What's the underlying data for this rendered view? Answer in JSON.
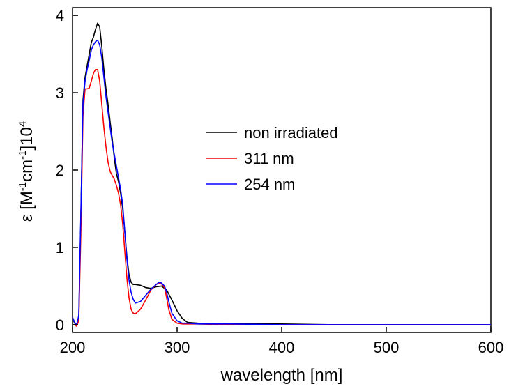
{
  "chart_data": {
    "type": "line",
    "title": "",
    "xlabel": "wavelength [nm]",
    "ylabel": {
      "prefix": "ε [M",
      "sup1": "-1",
      "mid": "cm",
      "sup2": "-1",
      "mid2": "]10",
      "sup3": "4"
    },
    "xlim": [
      200,
      600
    ],
    "ylim": [
      -0.1,
      4.1
    ],
    "xticks": [
      200,
      300,
      400,
      500,
      600
    ],
    "yticks": [
      0,
      1,
      2,
      3,
      4
    ],
    "grid": false,
    "legend_position": "center-right",
    "series": [
      {
        "name": "non irradiated",
        "color": "#000000",
        "x": [
          200,
          202,
          204,
          206,
          208,
          210,
          212,
          214,
          216,
          218,
          220,
          222,
          224,
          226,
          228,
          230,
          232,
          234,
          236,
          238,
          240,
          242,
          244,
          246,
          248,
          250,
          252,
          254,
          256,
          258,
          260,
          265,
          270,
          275,
          280,
          285,
          290,
          295,
          300,
          305,
          310,
          320,
          350,
          400,
          450,
          500,
          550,
          600
        ],
        "y": [
          0.08,
          0.02,
          0.0,
          0.1,
          1.4,
          2.9,
          3.2,
          3.35,
          3.5,
          3.65,
          3.72,
          3.82,
          3.9,
          3.85,
          3.6,
          3.3,
          3.05,
          2.85,
          2.62,
          2.4,
          2.15,
          1.95,
          1.85,
          1.7,
          1.5,
          1.2,
          0.88,
          0.65,
          0.55,
          0.52,
          0.52,
          0.51,
          0.48,
          0.47,
          0.49,
          0.5,
          0.45,
          0.32,
          0.18,
          0.08,
          0.03,
          0.02,
          0.01,
          0.01,
          0.0,
          0.0,
          0.0,
          0.0
        ]
      },
      {
        "name": "311 nm",
        "color": "#ff0000",
        "x": [
          200,
          202,
          204,
          206,
          208,
          210,
          212,
          214,
          216,
          218,
          220,
          222,
          224,
          226,
          228,
          230,
          232,
          234,
          236,
          238,
          240,
          242,
          244,
          246,
          248,
          250,
          252,
          254,
          256,
          258,
          260,
          265,
          270,
          275,
          280,
          283,
          285,
          288,
          290,
          292,
          295,
          300,
          305,
          310,
          320,
          350,
          400,
          450,
          500,
          550,
          600
        ],
        "y": [
          0.0,
          0.0,
          -0.02,
          0.05,
          1.2,
          2.7,
          3.05,
          3.05,
          3.06,
          3.15,
          3.25,
          3.3,
          3.3,
          3.15,
          2.85,
          2.55,
          2.3,
          2.1,
          1.98,
          1.93,
          1.88,
          1.8,
          1.7,
          1.55,
          1.3,
          0.95,
          0.6,
          0.35,
          0.2,
          0.15,
          0.14,
          0.2,
          0.32,
          0.45,
          0.52,
          0.54,
          0.53,
          0.48,
          0.35,
          0.2,
          0.07,
          0.02,
          0.01,
          0.01,
          0.01,
          0.0,
          0.0,
          0.0,
          0.0,
          0.0,
          0.0
        ]
      },
      {
        "name": "254 nm",
        "color": "#0000ff",
        "x": [
          200,
          202,
          204,
          206,
          208,
          210,
          212,
          214,
          216,
          218,
          220,
          222,
          224,
          226,
          228,
          230,
          232,
          234,
          236,
          238,
          240,
          242,
          244,
          246,
          248,
          250,
          252,
          254,
          256,
          258,
          260,
          265,
          270,
          275,
          280,
          283,
          285,
          288,
          290,
          292,
          295,
          300,
          305,
          310,
          320,
          350,
          400,
          450,
          500,
          550,
          600
        ],
        "y": [
          0.1,
          0.03,
          0.0,
          0.12,
          1.45,
          2.85,
          3.15,
          3.3,
          3.42,
          3.55,
          3.62,
          3.66,
          3.68,
          3.62,
          3.45,
          3.2,
          2.95,
          2.75,
          2.55,
          2.35,
          2.2,
          2.05,
          1.9,
          1.75,
          1.55,
          1.2,
          0.85,
          0.58,
          0.42,
          0.33,
          0.28,
          0.3,
          0.38,
          0.46,
          0.52,
          0.55,
          0.54,
          0.5,
          0.42,
          0.3,
          0.15,
          0.05,
          0.02,
          0.02,
          0.01,
          0.01,
          0.0,
          0.0,
          0.0,
          0.0,
          0.0
        ]
      }
    ]
  }
}
